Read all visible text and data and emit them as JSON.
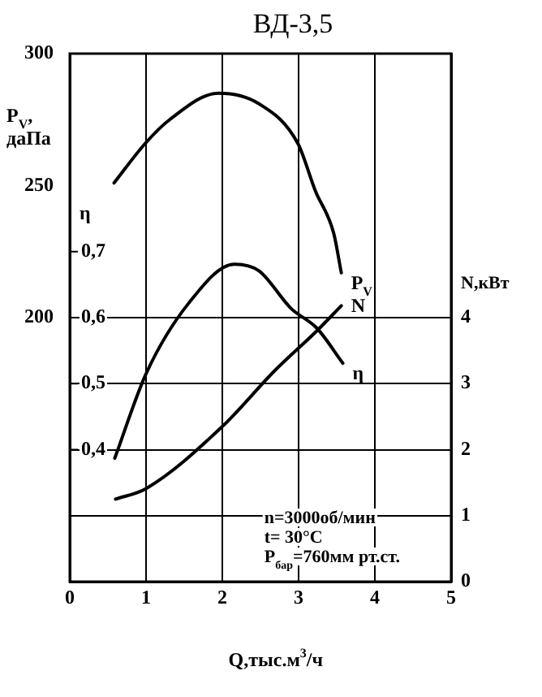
{
  "chart_data": {
    "type": "line",
    "title": "ВД-3,5",
    "xlabel": "Q,тыс.м$^{3}$/ч",
    "ylabel": "P$_{V}$,\nдаПа",
    "y2label": "N,кВт",
    "y3label": "η",
    "xlim": [
      0,
      5
    ],
    "xticks": [
      0,
      1,
      2,
      3,
      4,
      5
    ],
    "ylim": [
      100,
      300
    ],
    "yticks": [
      200,
      250,
      300
    ],
    "y2lim": [
      0,
      8
    ],
    "y2ticks": [
      0,
      1,
      2,
      3,
      4
    ],
    "y3lim": [
      0.2,
      1.0
    ],
    "y3ticks": [
      {
        "value": 0.4,
        "label": "0,4"
      },
      {
        "value": 0.5,
        "label": "0,5"
      },
      {
        "value": 0.6,
        "label": "0,6"
      },
      {
        "value": 0.7,
        "label": "0,7"
      }
    ],
    "grid": true,
    "legend": false,
    "marker": "none",
    "line_style": "solid",
    "series": [
      {
        "name": "P$_{V}$",
        "color": "#000000",
        "axis": "y",
        "x": [
          0.58,
          0.99,
          1.31,
          1.95,
          2.48,
          2.99,
          3.22,
          3.46,
          3.56
        ],
        "values": [
          251,
          266,
          275,
          285,
          281,
          266,
          248,
          232,
          217
        ]
      },
      {
        "name": "η",
        "color": "#000000",
        "axis": "y3",
        "x": [
          0.59,
          1.0,
          1.56,
          2.16,
          2.48,
          2.9,
          3.24,
          3.58
        ],
        "values": [
          0.387,
          0.515,
          0.622,
          0.681,
          0.671,
          0.614,
          0.584,
          0.531
        ]
      },
      {
        "name": "N",
        "color": "#000000",
        "axis": "y2",
        "x": [
          0.6,
          1.0,
          2.0,
          2.69,
          3.24,
          3.56
        ],
        "values": [
          1.25,
          1.41,
          2.35,
          3.2,
          3.8,
          4.18
        ]
      }
    ],
    "annotations": [
      "n=3000об/мин",
      "t= 30°С",
      "P$_{бар}$=760мм рт.ст."
    ]
  }
}
